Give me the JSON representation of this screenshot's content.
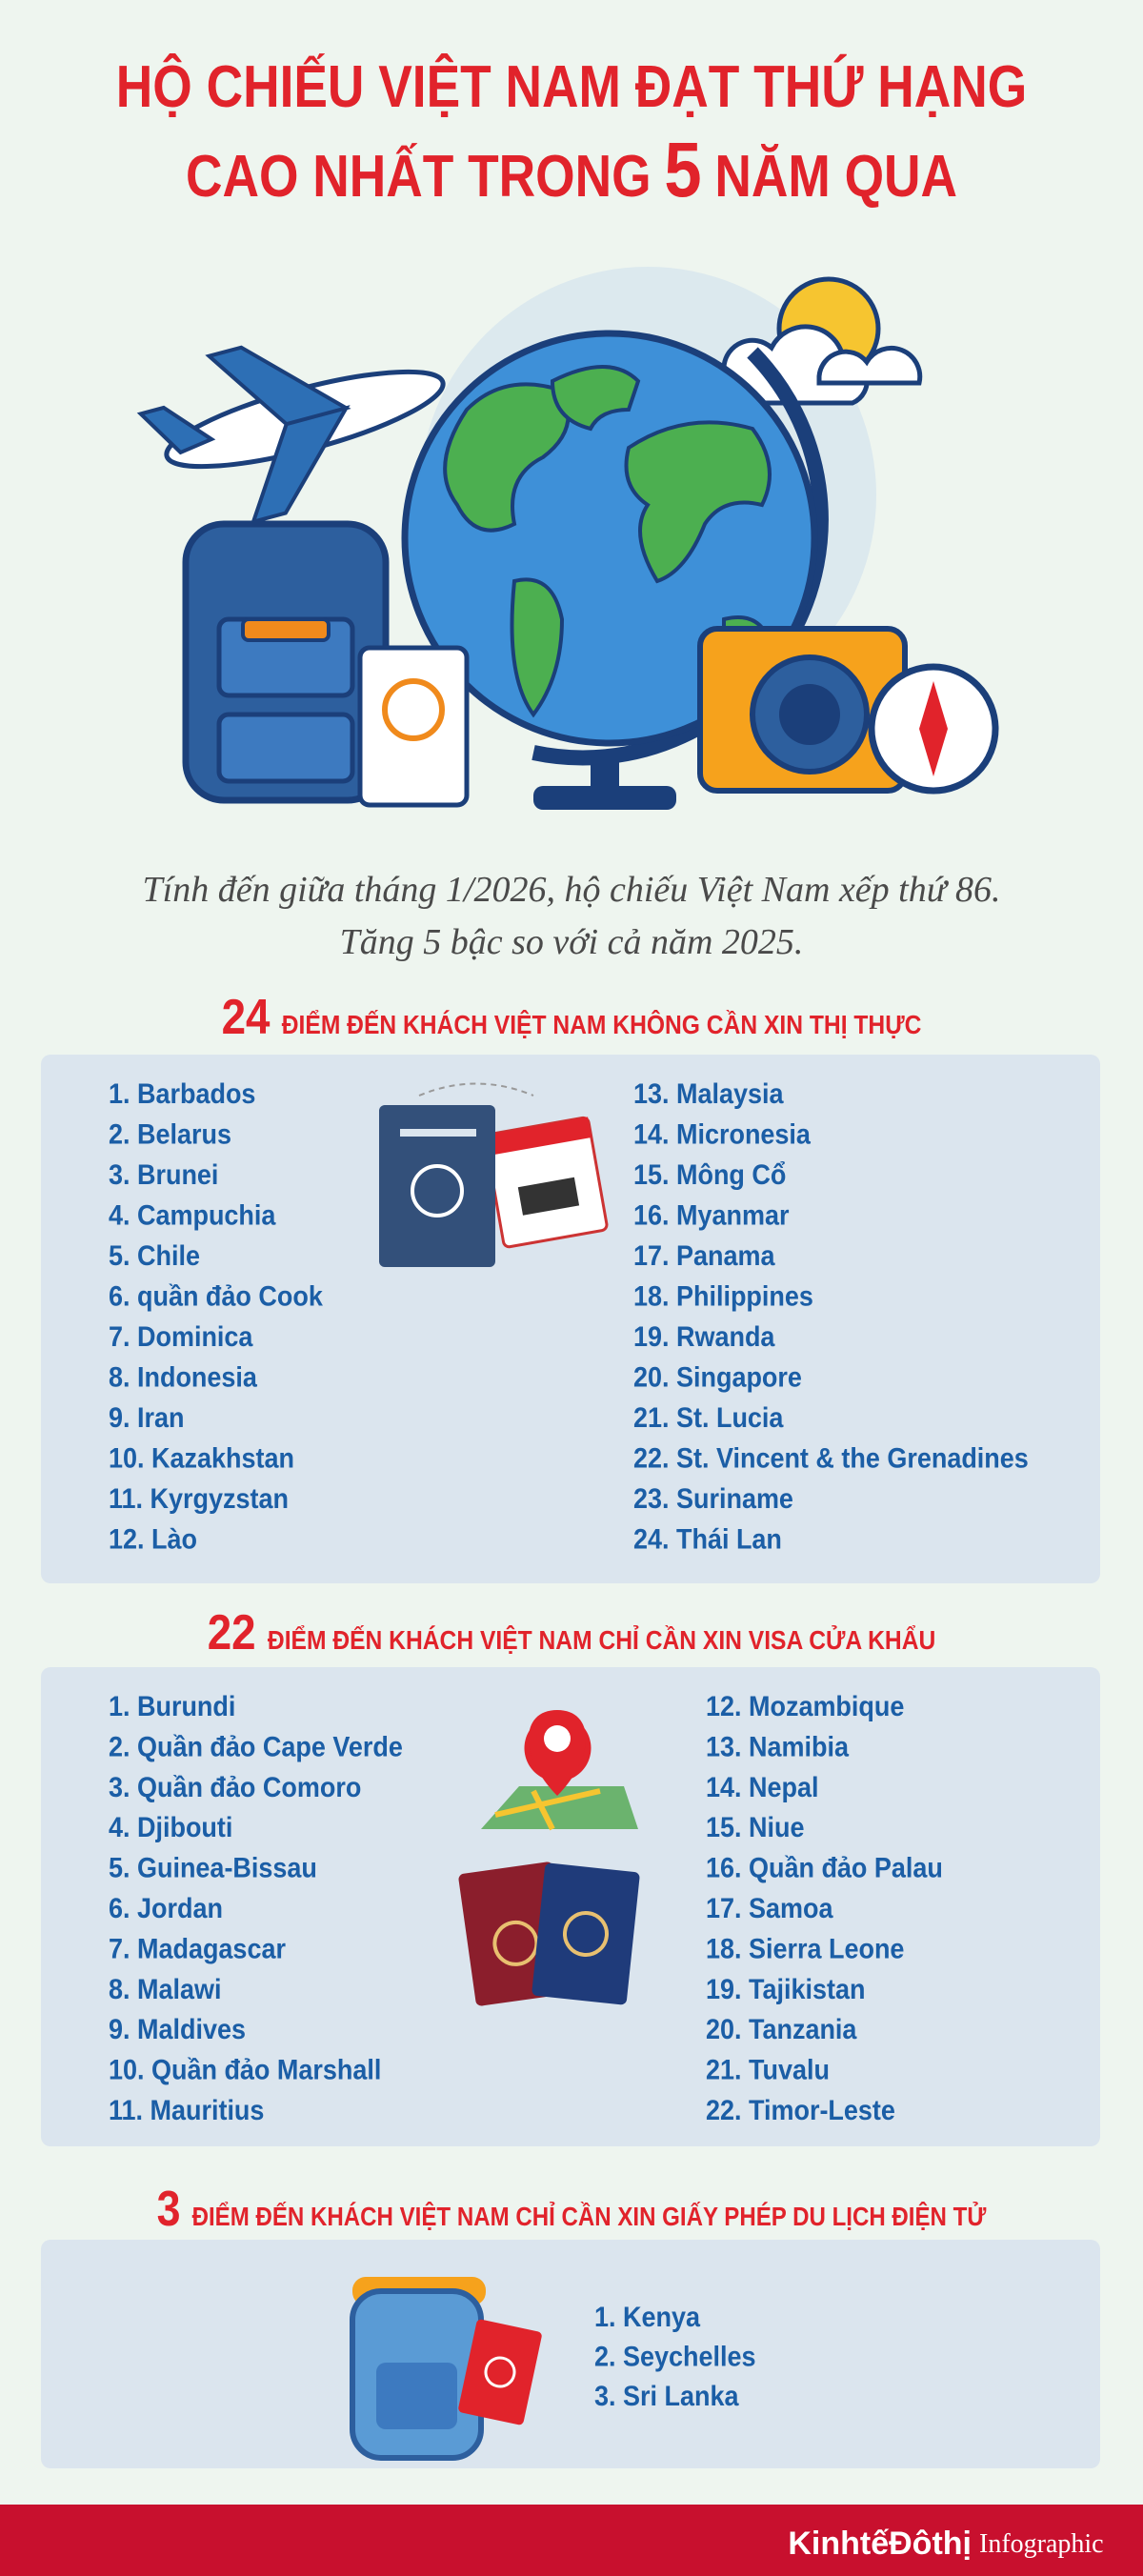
{
  "header": {
    "title_line_1": "HỘ CHIẾU VIỆT NAM ĐẠT THỨ HẠNG",
    "title_line_2": [
      "CAO NHẤT TRONG",
      "5",
      "NĂM QUA"
    ]
  },
  "intro": [
    "Tính đến giữa tháng 1/2026, hộ chiếu Việt Nam xếp thứ 86.",
    "Tăng 5 bậc so với cả năm 2025."
  ],
  "sections": [
    {
      "count": "24",
      "heading": "ĐIỂM ĐẾN KHÁCH VIỆT NAM KHÔNG CẦN XIN THỊ THỰC",
      "items": [
        "1. Barbados",
        "2. Belarus",
        "3. Brunei",
        "4. Campuchia",
        "5. Chile",
        "6. quần đảo Cook",
        "7. Dominica",
        "8. Indonesia",
        "9. Iran",
        "10. Kazakhstan",
        "11. Kyrgyzstan",
        "12. Lào",
        "13. Malaysia",
        "14. Micronesia",
        "15. Mông Cổ",
        "16. Myanmar",
        "17. Panama",
        "18. Philippines",
        "19. Rwanda",
        "20. Singapore",
        "21. St. Lucia",
        "22. St. Vincent & the Grenadines",
        "23. Suriname",
        "24. Thái Lan"
      ]
    },
    {
      "count": "22",
      "heading": "ĐIỂM ĐẾN KHÁCH VIỆT NAM CHỈ CẦN XIN VISA CỬA KHẨU",
      "items": [
        "1. Burundi",
        "2. Quần đảo Cape Verde",
        "3. Quần đảo Comoro",
        "4. Djibouti",
        "5. Guinea-Bissau",
        "6. Jordan",
        "7. Madagascar",
        "8. Malawi",
        "9. Maldives",
        "10. Quần đảo Marshall",
        "11. Mauritius",
        "12. Mozambique",
        "13. Namibia",
        "14. Nepal",
        "15. Niue",
        "16. Quần đảo Palau",
        "17. Samoa",
        "18. Sierra Leone",
        "19. Tajikistan",
        "20. Tanzania",
        "21. Tuvalu",
        "22. Timor-Leste"
      ]
    },
    {
      "count": "3",
      "heading": "ĐIỂM ĐẾN KHÁCH VIỆT NAM CHỈ CẦN XIN GIẤY PHÉP DU LỊCH ĐIỆN TỬ",
      "items": [
        "1. Kenya",
        "2. Seychelles",
        "3. Sri Lanka"
      ]
    }
  ],
  "footer": {
    "brand": "KinhtếĐôthị",
    "label": "Infographic"
  }
}
